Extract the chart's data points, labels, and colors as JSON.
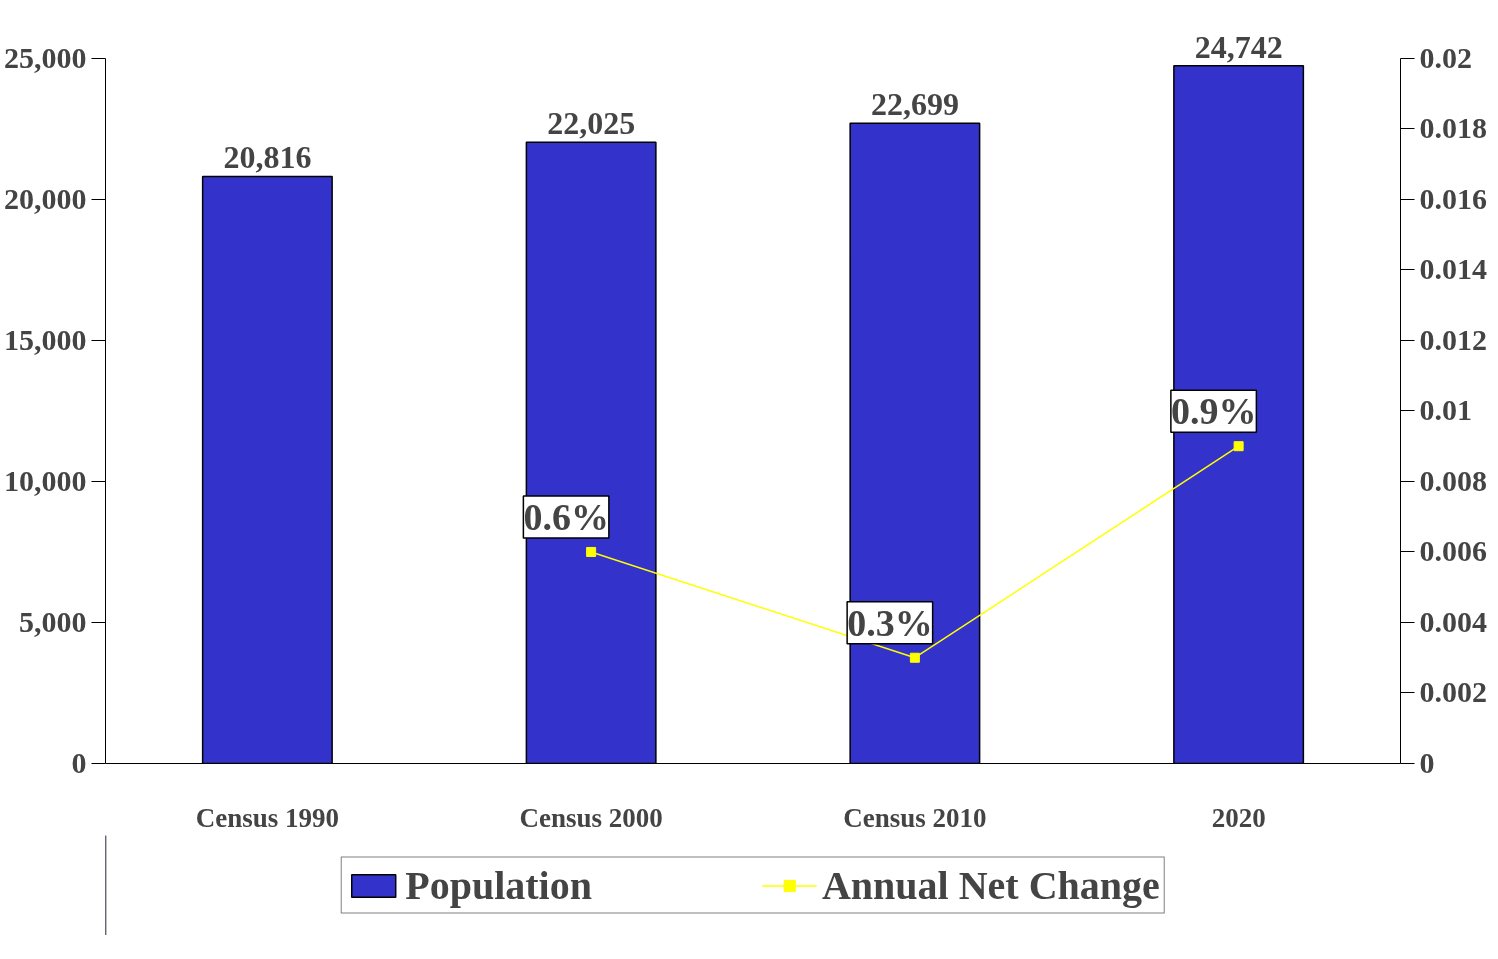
{
  "chart_data": {
    "type": "bar",
    "categories": [
      "Census 1990",
      "Census 2000",
      "Census 2010",
      "2020"
    ],
    "series": [
      {
        "name": "Population",
        "color": "#3333cc",
        "values": [
          20816,
          22025,
          22699,
          24742
        ],
        "value_labels": [
          "20,816",
          "22,025",
          "22,699",
          "24,742"
        ]
      },
      {
        "name": "Annual Net Change",
        "type": "line",
        "axis": "y2",
        "color": "#ffff00",
        "values": [
          null,
          0.006,
          0.003,
          0.009
        ],
        "value_labels": [
          null,
          "0.6%",
          "0.3%",
          "0.9%"
        ]
      }
    ],
    "ylim": [
      0,
      25000
    ],
    "yticks": [
      0,
      {
        "value": 5000,
        "label": "5,000"
      },
      {
        "value": 10000,
        "label": "10,000"
      },
      {
        "value": 15000,
        "label": "15,000"
      },
      {
        "value": 20000,
        "label": "20,000"
      },
      {
        "value": 25000,
        "label": "25,000"
      }
    ],
    "y2lim": [
      0,
      0.02
    ],
    "y2ticks": [
      0,
      0.002,
      0.004,
      0.006,
      0.008,
      0.01,
      0.012,
      0.014,
      0.016,
      0.018,
      0.02
    ],
    "marker": "square",
    "grid": false,
    "legend": "bottom"
  }
}
